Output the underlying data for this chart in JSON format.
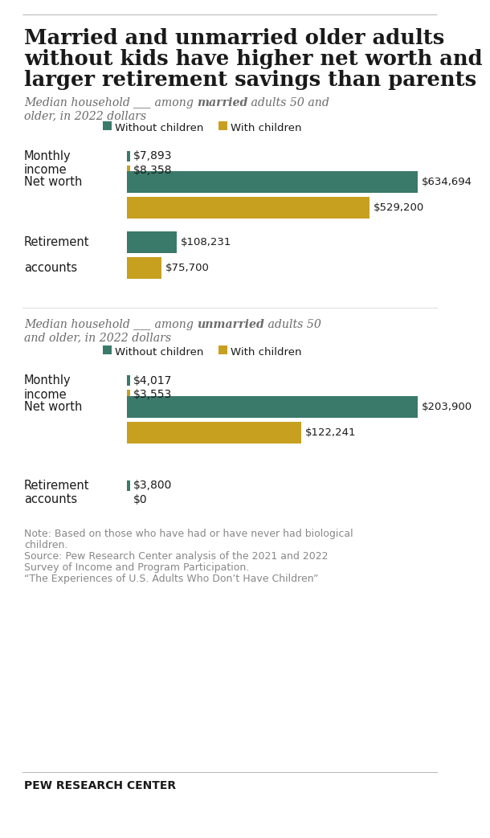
{
  "title_line1": "Married and unmarried older adults",
  "title_line2": "without kids have higher net worth and",
  "title_line3": "larger retirement savings than parents",
  "bg_color": "#ffffff",
  "green_color": "#3a7a6a",
  "gold_color": "#c8a020",
  "text_color": "#1a1a1a",
  "subtitle_color": "#6b6b6b",
  "note_color": "#888888",
  "married": {
    "monthly_income": {
      "without": 7893,
      "with": 8358
    },
    "net_worth": {
      "without": 634694,
      "with": 529200
    },
    "retirement": {
      "without": 108231,
      "with": 75700
    }
  },
  "unmarried": {
    "monthly_income": {
      "without": 4017,
      "with": 3553
    },
    "net_worth": {
      "without": 203900,
      "with": 122241
    },
    "retirement": {
      "without": 3800,
      "with": 0
    }
  },
  "note_lines": [
    "Note: Based on those who have had or have never had biological",
    "children.",
    "Source: Pew Research Center analysis of the 2021 and 2022",
    "Survey of Income and Program Participation.",
    "“The Experiences of U.S. Adults Who Don’t Have Children”"
  ],
  "footer": "PEW RESEARCH CENTER"
}
